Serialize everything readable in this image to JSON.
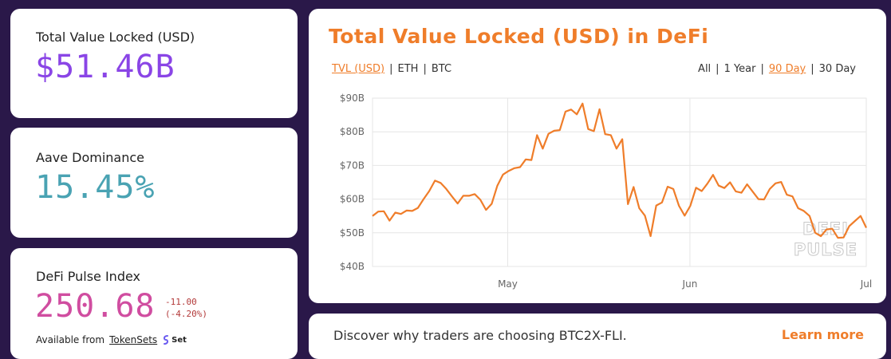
{
  "tvl": {
    "label": "Total Value Locked (USD)",
    "value": "$51.46B"
  },
  "aave": {
    "label": "Aave Dominance",
    "value": "15.45%"
  },
  "dpi": {
    "label": "DeFi Pulse Index",
    "value": "250.68",
    "change_abs": "-11.00",
    "change_pct": "(-4.20%)",
    "available_from": "Available from",
    "link": "TokenSets",
    "logo_text": "Set"
  },
  "chart": {
    "title": "Total Value Locked (USD) in DeFi",
    "currency_toggles": [
      {
        "label": "TVL (USD)",
        "active": true
      },
      {
        "label": "ETH",
        "active": false
      },
      {
        "label": "BTC",
        "active": false
      }
    ],
    "range_toggles": [
      {
        "label": "All",
        "active": false
      },
      {
        "label": "1 Year",
        "active": false
      },
      {
        "label": "90 Day",
        "active": true
      },
      {
        "label": "30 Day",
        "active": false
      }
    ],
    "watermark": [
      "DEFI",
      "PULSE"
    ],
    "line_color": "#ef7d2a"
  },
  "chart_data": {
    "type": "line",
    "y_tick_labels": [
      "$90B",
      "$80B",
      "$70B",
      "$60B",
      "$50B",
      "$40B"
    ],
    "ylim": [
      40,
      90
    ],
    "x_tick_labels": [
      {
        "label": "May",
        "day": 23
      },
      {
        "label": "Jun",
        "day": 54
      },
      {
        "label": "Jul",
        "day": 84
      }
    ],
    "xlim": [
      0,
      84
    ],
    "grid": true,
    "series": [
      {
        "values": [
          55.0,
          56.3,
          56.4,
          53.6,
          56.0,
          55.6,
          56.6,
          56.5,
          57.4,
          60.0,
          62.4,
          65.5,
          64.8,
          63.0,
          60.8,
          58.7,
          61.0,
          61.0,
          61.5,
          59.8,
          56.8,
          58.6,
          64.0,
          67.3,
          68.4,
          69.2,
          69.5,
          71.8,
          71.6,
          79.0,
          75.0,
          79.4,
          80.3,
          80.5,
          86.0,
          86.6,
          85.2,
          88.4,
          80.8,
          80.2,
          86.7,
          79.3,
          79.0,
          75.0,
          77.8,
          58.5,
          63.6,
          57.3,
          55.1,
          49.0,
          58.1,
          59.0,
          63.7,
          63.0,
          58.0,
          55.1,
          58.0,
          63.4,
          62.4,
          64.6,
          67.2,
          64.0,
          63.3,
          65.0,
          62.3,
          61.9,
          64.4,
          62.2,
          60.0,
          59.9,
          63.0,
          64.7,
          65.1,
          61.3,
          60.8,
          57.3,
          56.5,
          55.0,
          50.0,
          49.0,
          51.0,
          51.2,
          48.5,
          48.6,
          52.0,
          53.5,
          55.0,
          51.5
        ]
      }
    ]
  },
  "banner": {
    "text": "Discover why traders are choosing BTC2X-FLI.",
    "cta": "Learn more"
  }
}
